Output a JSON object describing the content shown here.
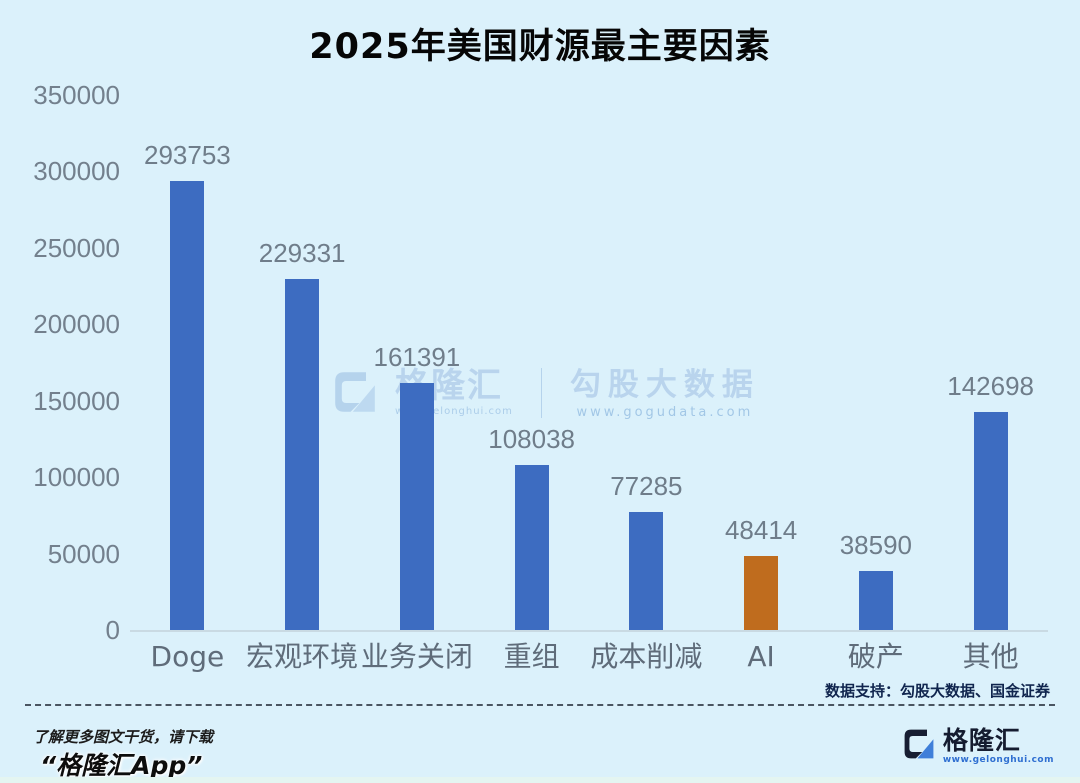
{
  "title": "2025年美国财源最主要因素",
  "chart_data": {
    "type": "bar",
    "title": "2025年美国财源最主要因素",
    "categories": [
      "Doge",
      "宏观环境",
      "业务关闭",
      "重组",
      "成本削减",
      "AI",
      "破产",
      "其他"
    ],
    "values": [
      293753,
      229331,
      161391,
      108038,
      77285,
      48414,
      38590,
      142698
    ],
    "highlight_index": 5,
    "ylim": [
      0,
      350000
    ],
    "yticks": [
      0,
      50000,
      100000,
      150000,
      200000,
      250000,
      300000,
      350000
    ],
    "grid": false,
    "legend": "none",
    "data_labels": true
  },
  "colors": {
    "background": "#dbf1fb",
    "bar": "#3d6cc1",
    "bar_highlight": "#bf6c1e",
    "axis_text": "#73808d",
    "category_text": "#5f6c7a",
    "title_text": "#060606",
    "source_text": "#10254e",
    "watermark": "#aecbe9"
  },
  "watermark": {
    "brand": "格隆汇",
    "brand_url": "www.gelonghui.com",
    "partner": "勾股大数据",
    "partner_url": "www.gogudata.com"
  },
  "source_note": "数据支持：勾股大数据、国金证券",
  "footer": {
    "promo_line1": "了解更多图文干货，请下载",
    "promo_line2": "“格隆汇App”",
    "brand": "格隆汇",
    "brand_url": "www.gelonghui.com"
  }
}
